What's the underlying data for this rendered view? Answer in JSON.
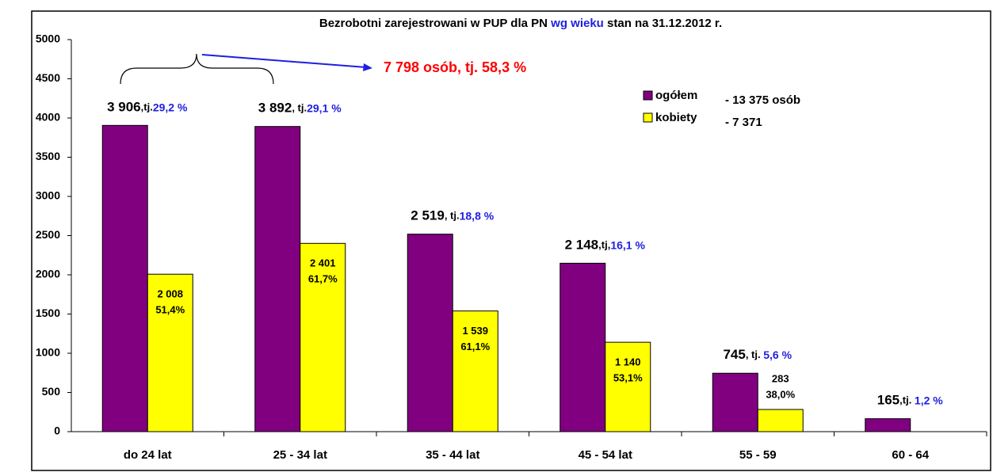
{
  "chart_data": {
    "type": "bar",
    "title": {
      "start": "Bezrobotni zarejestrowani w PUP dla PN ",
      "highlight": "wg wieku",
      "end": " stan na 31.12.2012 r."
    },
    "categories": [
      "do 24 lat",
      "25 - 34 lat",
      "35 - 44 lat",
      "45 - 54 lat",
      "55 - 59",
      "60 - 64"
    ],
    "series": [
      {
        "name": "ogółem",
        "color": "#800080",
        "values": [
          3906,
          3892,
          2519,
          2148,
          745,
          165
        ],
        "value_labels": [
          "3 906",
          "3 892",
          "2 519",
          "2 148",
          "745",
          "165"
        ],
        "label_joins": [
          ",tj.",
          ", tj.",
          ", tj.",
          ",tj,",
          ", tj. ",
          ",tj. "
        ],
        "share_labels": [
          "29,2 %",
          "29,1 %",
          "18,8 %",
          "16,1 %",
          "5,6 %",
          "1,2 %"
        ],
        "legend_note": "- 13 375 osób"
      },
      {
        "name": "kobiety",
        "color": "#ffff00",
        "values": [
          2008,
          2401,
          1539,
          1140,
          283,
          null
        ],
        "value_labels": [
          "2 008",
          "2 401",
          "1 539",
          "1 140",
          "283",
          null
        ],
        "share_labels": [
          "51,4%",
          "61,7%",
          "61,1%",
          "53,1%",
          "38,0%",
          null
        ],
        "legend_note": "-   7 371"
      }
    ],
    "annotation": "7 798 osób, tj. 58,3 %",
    "ylim": [
      0,
      5000
    ],
    "yticks": [
      0,
      500,
      1000,
      1500,
      2000,
      2500,
      3000,
      3500,
      4000,
      4500,
      5000
    ]
  }
}
